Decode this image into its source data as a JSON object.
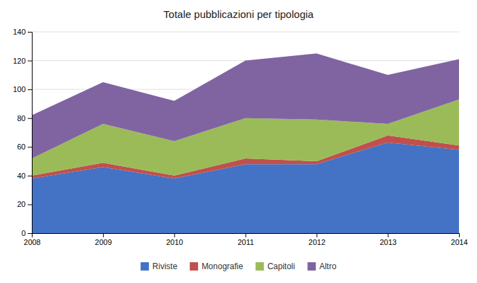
{
  "chart_data": {
    "type": "area",
    "title": "Totale pubblicazioni per tipologia",
    "x": [
      2008,
      2009,
      2010,
      2011,
      2012,
      2013,
      2014
    ],
    "series": [
      {
        "name": "Riviste",
        "color": "#4472c4",
        "values": [
          38,
          46,
          38,
          48,
          48,
          63,
          58
        ]
      },
      {
        "name": "Monografie",
        "color": "#c0504d",
        "values": [
          2,
          3,
          2,
          4,
          2,
          5,
          3
        ]
      },
      {
        "name": "Capitoli",
        "color": "#9bbb59",
        "values": [
          12,
          27,
          24,
          28,
          29,
          8,
          32
        ]
      },
      {
        "name": "Altro",
        "color": "#8064a2",
        "values": [
          30,
          29,
          28,
          40,
          46,
          34,
          28
        ]
      }
    ],
    "xlim": [
      2008,
      2014
    ],
    "xticks": [
      2008,
      2009,
      2010,
      2011,
      2012,
      2013,
      2014
    ],
    "ylim": [
      0,
      140
    ],
    "yticks": [
      0,
      20,
      40,
      60,
      80,
      100,
      120,
      140
    ],
    "grid": true,
    "legend": "bottom",
    "stacked": true
  }
}
